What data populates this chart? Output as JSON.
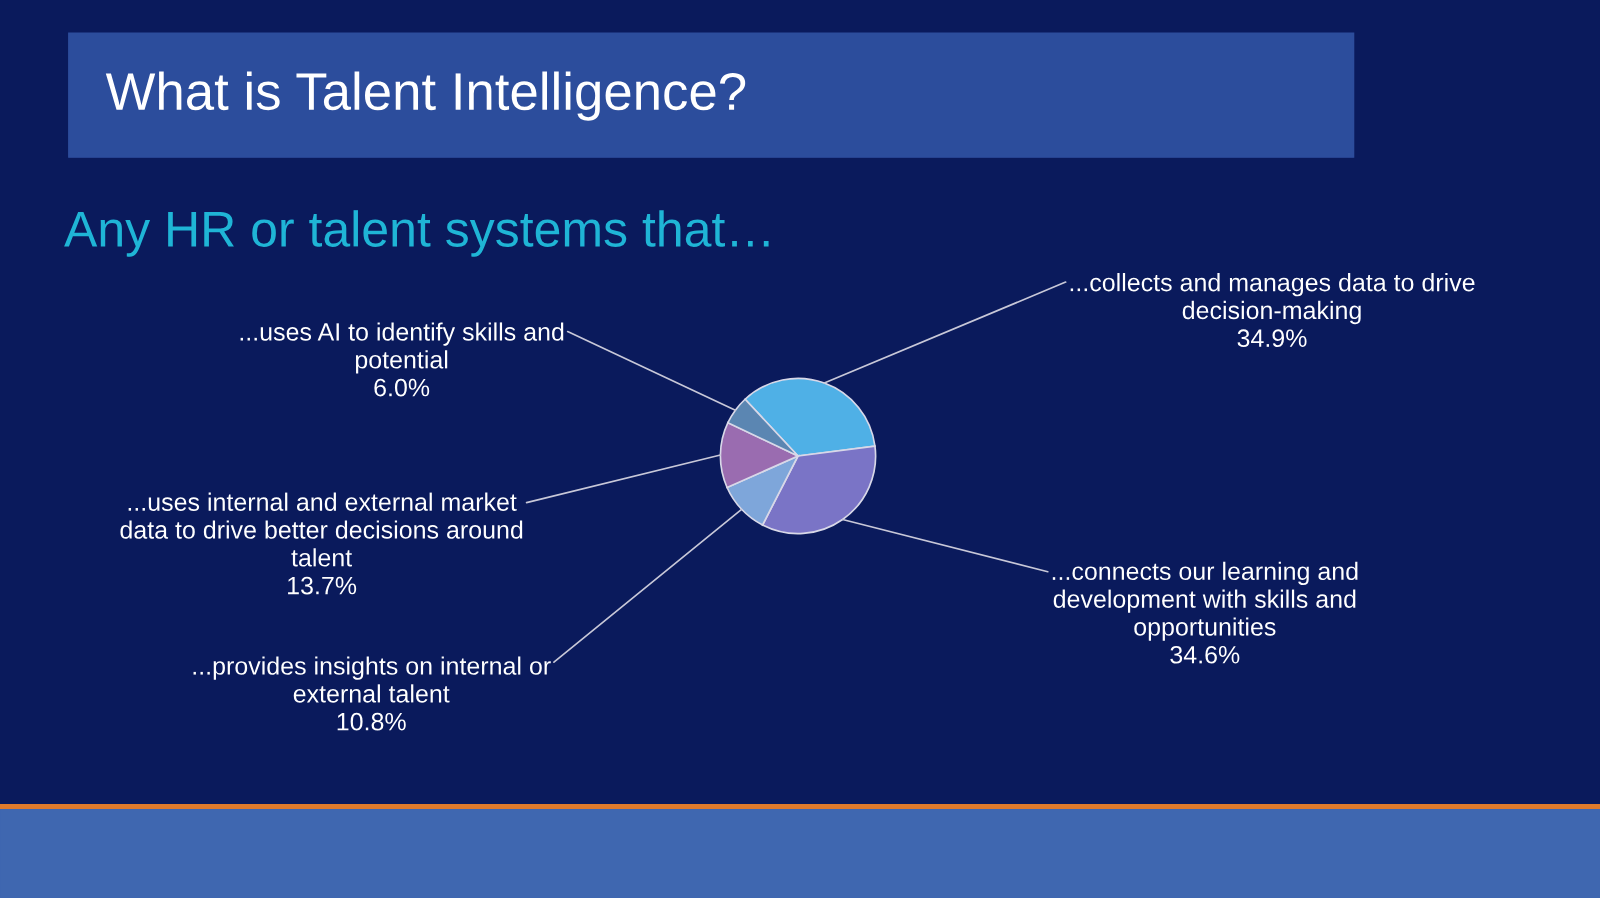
{
  "chart_data": {
    "type": "pie",
    "title": "What is Talent Intelligence?",
    "subtitle": "Any HR or talent systems that…",
    "categories": [
      "...collects and manages data to drive decision-making",
      "...connects our learning and development with skills and opportunities",
      "...provides insights on internal or external talent",
      "...uses internal and external market data to drive better decisions around talent",
      "...uses AI to identify skills and potential"
    ],
    "values": [
      34.9,
      34.6,
      10.8,
      13.7,
      6.0
    ],
    "value_labels": [
      "34.9%",
      "34.6%",
      "10.8%",
      "13.7%",
      "6.0%"
    ],
    "colors": [
      "#4fb0e6",
      "#7a74c6",
      "#7ea6da",
      "#9a6cb0",
      "#5b86b2"
    ]
  }
}
